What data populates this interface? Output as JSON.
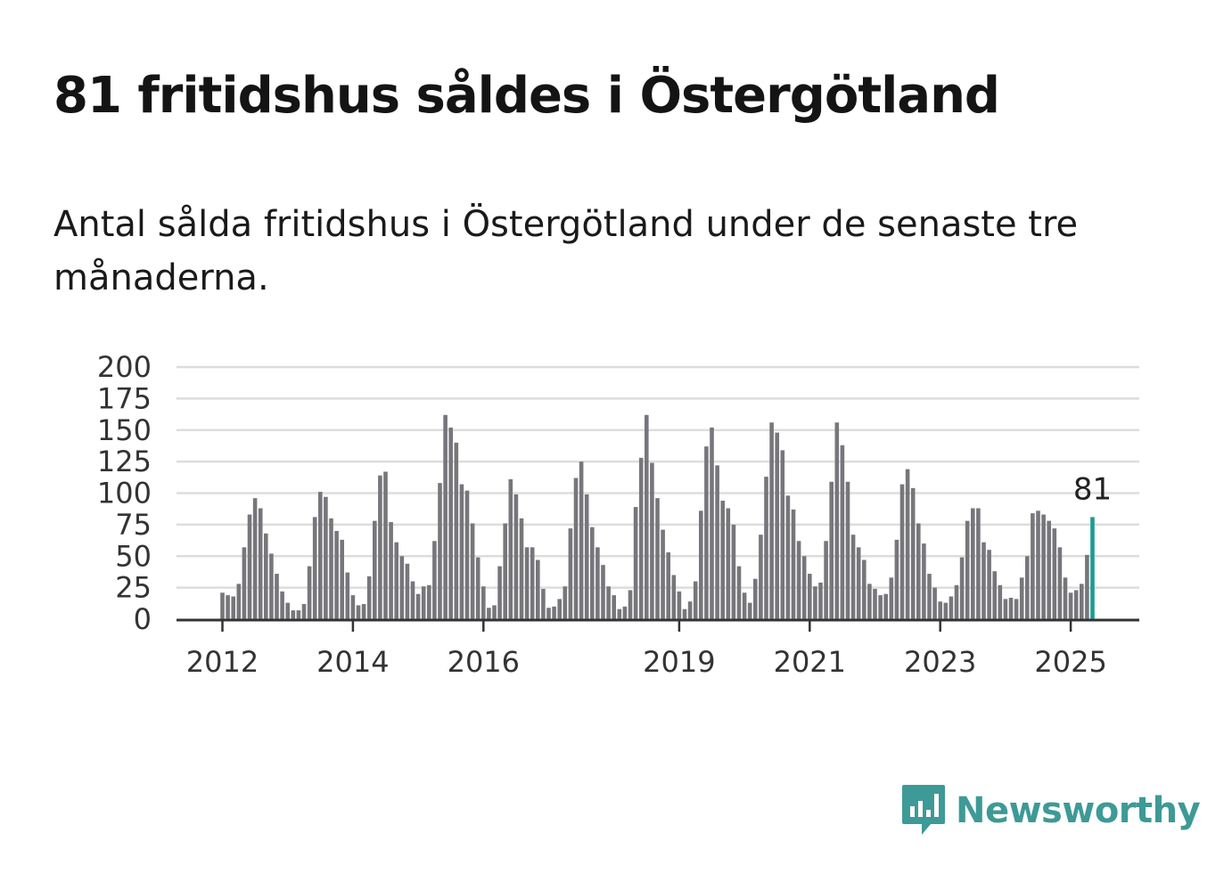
{
  "title": "81 fritidshus såldes i Östergötland",
  "subtitle": "Antal sålda fritidshus i Östergötland under de senaste tre månaderna.",
  "brand": {
    "name": "Newsworthy",
    "color": "#3d9a96"
  },
  "colors": {
    "bar": "#77767b",
    "highlight": "#1f9a94",
    "grid": "#dddddd",
    "axis": "#333333"
  },
  "chart_data": {
    "type": "bar",
    "title": "",
    "xlabel": "",
    "ylabel": "",
    "ylim": [
      0,
      200
    ],
    "yticks": [
      0,
      25,
      50,
      75,
      100,
      125,
      150,
      175,
      200
    ],
    "xtick_labels": [
      {
        "label": "2012",
        "index": 0
      },
      {
        "label": "2014",
        "index": 24
      },
      {
        "label": "2016",
        "index": 48
      },
      {
        "label": "2019",
        "index": 84
      },
      {
        "label": "2021",
        "index": 108
      },
      {
        "label": "2023",
        "index": 132
      },
      {
        "label": "2025",
        "index": 156
      }
    ],
    "grid": true,
    "series": [
      {
        "values": [
          21,
          19,
          18,
          28,
          57,
          83,
          96,
          88,
          68,
          52,
          36,
          22,
          13,
          7,
          7,
          12,
          42,
          81,
          101,
          97,
          80,
          70,
          63,
          37,
          19,
          11,
          12,
          34,
          78,
          114,
          117,
          77,
          61,
          50,
          44,
          30,
          20,
          26,
          27,
          62,
          108,
          162,
          152,
          140,
          107,
          102,
          76,
          49,
          26,
          9,
          11,
          42,
          76,
          111,
          99,
          80,
          57,
          57,
          47,
          24,
          9,
          10,
          16,
          26,
          72,
          112,
          125,
          99,
          73,
          57,
          43,
          26,
          19,
          8,
          10,
          23,
          89,
          128,
          162,
          124,
          96,
          71,
          53,
          35,
          22,
          8,
          14,
          30,
          86,
          137,
          152,
          122,
          94,
          88,
          75,
          42,
          21,
          13,
          32,
          67,
          113,
          156,
          148,
          134,
          98,
          87,
          62,
          50,
          36,
          26,
          29,
          62,
          109,
          156,
          138,
          109,
          67,
          57,
          47,
          28,
          24,
          19,
          20,
          33,
          63,
          107,
          119,
          104,
          76,
          60,
          36,
          25,
          14,
          13,
          18,
          27,
          49,
          78,
          88,
          88,
          61,
          55,
          38,
          27,
          16,
          17,
          16,
          33,
          50,
          84,
          86,
          83,
          78,
          72,
          57,
          33,
          21,
          23,
          28,
          51,
          81
        ]
      }
    ],
    "highlight_last": true,
    "annotation": {
      "text": "81"
    }
  }
}
